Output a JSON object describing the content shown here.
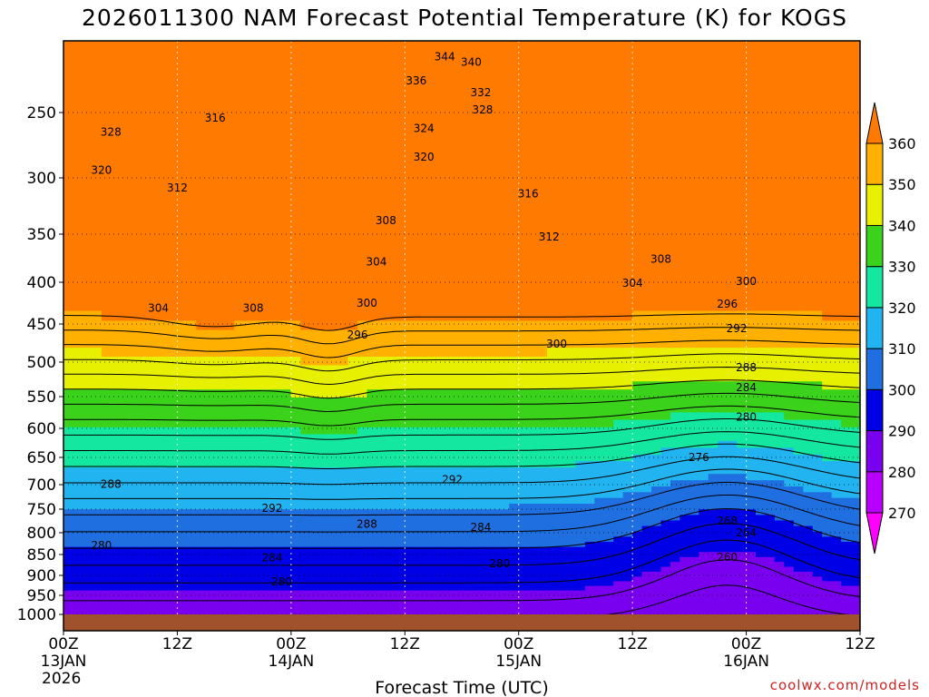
{
  "chart_data": {
    "type": "heatmap",
    "title": "2026011300 NAM Forecast Potential Temperature (K) for KOGS",
    "xlabel": "Forecast Time (UTC)",
    "ylabel": "",
    "x_ticks": [
      {
        "hour": 0,
        "lines": [
          "00Z",
          "13JAN",
          "2026"
        ]
      },
      {
        "hour": 12,
        "lines": [
          "12Z"
        ]
      },
      {
        "hour": 24,
        "lines": [
          "00Z",
          "14JAN"
        ]
      },
      {
        "hour": 36,
        "lines": [
          "12Z"
        ]
      },
      {
        "hour": 48,
        "lines": [
          "00Z",
          "15JAN"
        ]
      },
      {
        "hour": 60,
        "lines": [
          "12Z"
        ]
      },
      {
        "hour": 72,
        "lines": [
          "00Z",
          "16JAN"
        ]
      },
      {
        "hour": 84,
        "lines": [
          "12Z"
        ]
      }
    ],
    "xlim": [
      0,
      84
    ],
    "y_ticks": [
      250,
      300,
      350,
      400,
      450,
      500,
      550,
      600,
      650,
      700,
      750,
      800,
      850,
      900,
      950,
      1000
    ],
    "ylim_pressure_hpa": [
      200,
      1020
    ],
    "colorbar": {
      "levels": [
        270,
        280,
        290,
        300,
        310,
        320,
        330,
        340,
        350,
        360
      ],
      "colors": [
        "#ff00ff",
        "#b800ff",
        "#7a00f0",
        "#0000e6",
        "#1f6fe0",
        "#22b4f0",
        "#14e8a0",
        "#3ad21a",
        "#e6f000",
        "#ffb000",
        "#ff7a00"
      ]
    },
    "contour_labels": [
      {
        "text": "344",
        "hour": 40.2,
        "p": 211
      },
      {
        "text": "340",
        "hour": 43.0,
        "p": 215
      },
      {
        "text": "336",
        "hour": 37.2,
        "p": 228
      },
      {
        "text": "332",
        "hour": 44.0,
        "p": 236
      },
      {
        "text": "328",
        "hour": 44.2,
        "p": 248
      },
      {
        "text": "324",
        "hour": 38.0,
        "p": 262
      },
      {
        "text": "320",
        "hour": 38.0,
        "p": 284
      },
      {
        "text": "316",
        "hour": 16.0,
        "p": 254
      },
      {
        "text": "328",
        "hour": 5.0,
        "p": 265
      },
      {
        "text": "320",
        "hour": 4.0,
        "p": 294
      },
      {
        "text": "312",
        "hour": 12.0,
        "p": 309
      },
      {
        "text": "316",
        "hour": 49.0,
        "p": 314
      },
      {
        "text": "312",
        "hour": 51.2,
        "p": 353
      },
      {
        "text": "308",
        "hour": 34.0,
        "p": 338
      },
      {
        "text": "304",
        "hour": 33.0,
        "p": 379
      },
      {
        "text": "308",
        "hour": 63.0,
        "p": 376
      },
      {
        "text": "304",
        "hour": 60.0,
        "p": 401
      },
      {
        "text": "300",
        "hour": 72.0,
        "p": 399
      },
      {
        "text": "304",
        "hour": 10.0,
        "p": 431
      },
      {
        "text": "308",
        "hour": 20.0,
        "p": 431
      },
      {
        "text": "300",
        "hour": 32.0,
        "p": 425
      },
      {
        "text": "296",
        "hour": 70.0,
        "p": 426
      },
      {
        "text": "292",
        "hour": 71.0,
        "p": 456
      },
      {
        "text": "296",
        "hour": 31.0,
        "p": 464
      },
      {
        "text": "300",
        "hour": 52.0,
        "p": 476
      },
      {
        "text": "288",
        "hour": 72.0,
        "p": 508
      },
      {
        "text": "284",
        "hour": 72.0,
        "p": 537
      },
      {
        "text": "280",
        "hour": 72.0,
        "p": 582
      },
      {
        "text": "276",
        "hour": 67.0,
        "p": 650
      },
      {
        "text": "292",
        "hour": 41.0,
        "p": 691
      },
      {
        "text": "288",
        "hour": 5.0,
        "p": 699
      },
      {
        "text": "292",
        "hour": 22.0,
        "p": 748
      },
      {
        "text": "288",
        "hour": 32.0,
        "p": 782
      },
      {
        "text": "284",
        "hour": 44.0,
        "p": 788
      },
      {
        "text": "268",
        "hour": 70.0,
        "p": 775
      },
      {
        "text": "264",
        "hour": 72.0,
        "p": 800
      },
      {
        "text": "280",
        "hour": 4.0,
        "p": 829
      },
      {
        "text": "284",
        "hour": 22.0,
        "p": 858
      },
      {
        "text": "280",
        "hour": 46.0,
        "p": 872
      },
      {
        "text": "260",
        "hour": 70.0,
        "p": 857
      },
      {
        "text": "280",
        "hour": 23.0,
        "p": 916
      }
    ]
  },
  "credit": "coolwx.com/models"
}
